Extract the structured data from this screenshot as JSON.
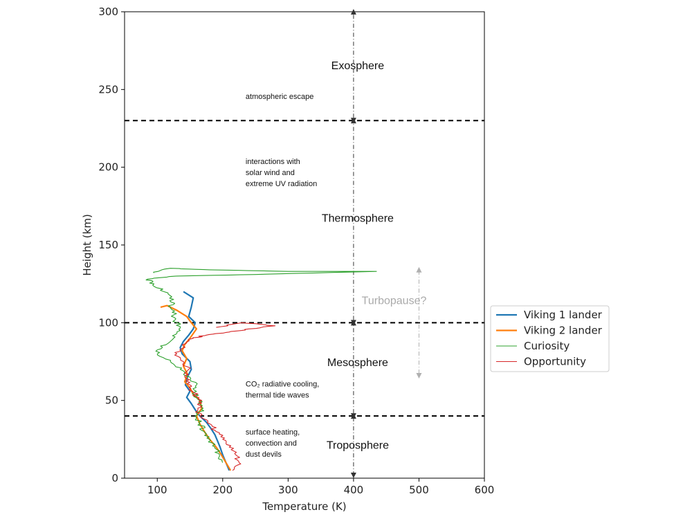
{
  "chart_data": {
    "type": "line",
    "xlabel": "Temperature (K)",
    "ylabel": "Height (km)",
    "xlim": [
      50,
      600
    ],
    "ylim": [
      0,
      300
    ],
    "xticks": [
      100,
      200,
      300,
      400,
      500,
      600
    ],
    "yticks": [
      0,
      50,
      100,
      150,
      200,
      250,
      300
    ],
    "grid": false,
    "legend_position": "right",
    "boundaries_km": [
      40,
      100,
      230
    ],
    "layers": [
      {
        "name": "Exosphere",
        "x": 400,
        "y": 263
      },
      {
        "name": "Thermosphere",
        "x": 400,
        "y": 165
      },
      {
        "name": "Mesosphere",
        "x": 400,
        "y": 72
      },
      {
        "name": "Troposphere",
        "x": 400,
        "y": 19
      }
    ],
    "notes": [
      {
        "lines": [
          "atmospheric escape"
        ],
        "x": 235,
        "y": 244
      },
      {
        "lines": [
          "interactions with",
          "solar wind and",
          "extreme UV radiation"
        ],
        "x": 235,
        "y": 202
      },
      {
        "lines": [
          "CO₂ radiative cooling,",
          "thermal tide waves"
        ],
        "x": 235,
        "y": 59
      },
      {
        "lines": [
          "surface heating,",
          "convection and",
          "dust devils"
        ],
        "x": 235,
        "y": 28
      }
    ],
    "turbopause": {
      "label": "Turbopause?",
      "x": 500,
      "y_range": [
        65,
        135
      ],
      "label_y": 112
    },
    "arrow_x": 400,
    "series": [
      {
        "name": "Viking 1 lander",
        "color": "#1f77b4",
        "width": 2.2,
        "points": [
          [
            210,
            5
          ],
          [
            205,
            10
          ],
          [
            200,
            15
          ],
          [
            196,
            20
          ],
          [
            192,
            24
          ],
          [
            188,
            28
          ],
          [
            182,
            32
          ],
          [
            175,
            36
          ],
          [
            165,
            40
          ],
          [
            158,
            44
          ],
          [
            152,
            48
          ],
          [
            145,
            52
          ],
          [
            150,
            56
          ],
          [
            143,
            60
          ],
          [
            146,
            65
          ],
          [
            152,
            70
          ],
          [
            150,
            75
          ],
          [
            138,
            80
          ],
          [
            135,
            84
          ],
          [
            140,
            88
          ],
          [
            148,
            92
          ],
          [
            155,
            96
          ],
          [
            158,
            100
          ],
          [
            148,
            104
          ],
          [
            152,
            110
          ],
          [
            155,
            116
          ],
          [
            140,
            120
          ]
        ]
      },
      {
        "name": "Viking 2 lander",
        "color": "#ff7f0e",
        "width": 2.2,
        "points": [
          [
            212,
            5
          ],
          [
            205,
            10
          ],
          [
            198,
            15
          ],
          [
            190,
            20
          ],
          [
            180,
            25
          ],
          [
            172,
            30
          ],
          [
            165,
            35
          ],
          [
            160,
            40
          ],
          [
            168,
            45
          ],
          [
            165,
            50
          ],
          [
            155,
            54
          ],
          [
            150,
            58
          ],
          [
            142,
            62
          ],
          [
            146,
            67
          ],
          [
            140,
            72
          ],
          [
            145,
            77
          ],
          [
            138,
            82
          ],
          [
            142,
            86
          ],
          [
            150,
            90
          ],
          [
            160,
            96
          ],
          [
            152,
            100
          ],
          [
            145,
            104
          ],
          [
            130,
            108
          ],
          [
            115,
            111
          ],
          [
            105,
            110
          ]
        ]
      },
      {
        "name": "Curiosity",
        "color": "#2ca02c",
        "width": 1.1,
        "points": [
          [
            200,
            10
          ],
          [
            195,
            15
          ],
          [
            188,
            20
          ],
          [
            180,
            25
          ],
          [
            172,
            30
          ],
          [
            165,
            35
          ],
          [
            158,
            40
          ],
          [
            170,
            45
          ],
          [
            165,
            50
          ],
          [
            155,
            55
          ],
          [
            160,
            60
          ],
          [
            150,
            65
          ],
          [
            135,
            70
          ],
          [
            120,
            75
          ],
          [
            100,
            80
          ],
          [
            105,
            85
          ],
          [
            125,
            90
          ],
          [
            135,
            95
          ],
          [
            130,
            100
          ],
          [
            125,
            105
          ],
          [
            120,
            110
          ],
          [
            125,
            115
          ],
          [
            110,
            120
          ],
          [
            95,
            125
          ],
          [
            85,
            128
          ],
          [
            130,
            130
          ],
          [
            250,
            131
          ],
          [
            435,
            133
          ],
          [
            300,
            133
          ],
          [
            180,
            134
          ],
          [
            120,
            135
          ],
          [
            95,
            132
          ]
        ]
      },
      {
        "name": "Opportunity",
        "color": "#d62728",
        "width": 1.1,
        "points": [
          [
            215,
            5
          ],
          [
            225,
            10
          ],
          [
            220,
            15
          ],
          [
            210,
            20
          ],
          [
            200,
            25
          ],
          [
            190,
            30
          ],
          [
            180,
            35
          ],
          [
            165,
            40
          ],
          [
            162,
            45
          ],
          [
            168,
            50
          ],
          [
            155,
            55
          ],
          [
            150,
            60
          ],
          [
            142,
            65
          ],
          [
            148,
            70
          ],
          [
            140,
            75
          ],
          [
            130,
            80
          ],
          [
            140,
            85
          ],
          [
            155,
            90
          ],
          [
            175,
            92
          ],
          [
            210,
            94
          ],
          [
            240,
            96
          ],
          [
            280,
            98
          ],
          [
            230,
            100
          ],
          [
            190,
            97
          ]
        ]
      }
    ]
  }
}
